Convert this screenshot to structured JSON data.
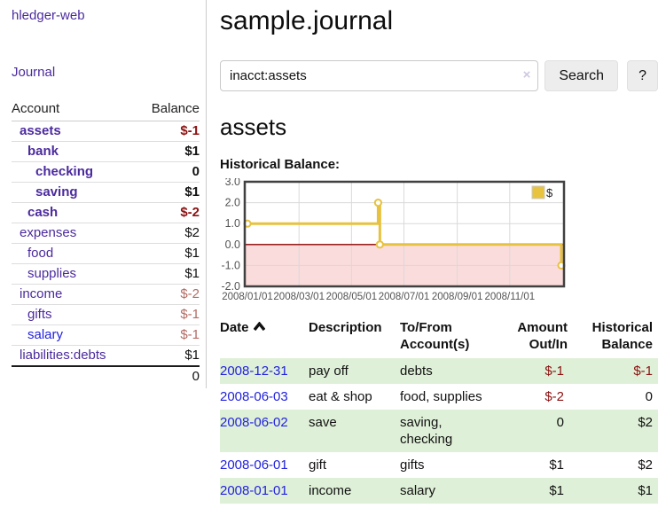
{
  "app": {
    "brand": "hledger-web"
  },
  "sidebar": {
    "nav_journal": "Journal",
    "accounts_table": {
      "header_account": "Account",
      "header_balance": "Balance",
      "rows": [
        {
          "name": "assets",
          "indent": 1,
          "bold": true,
          "name_style": "purple",
          "balance": "$-1",
          "balance_style": "neg-strong"
        },
        {
          "name": "bank",
          "indent": 2,
          "bold": true,
          "name_style": "purple",
          "balance": "$1",
          "balance_style": "pos"
        },
        {
          "name": "checking",
          "indent": 3,
          "bold": true,
          "name_style": "purple",
          "balance": "0",
          "balance_style": "pos"
        },
        {
          "name": "saving",
          "indent": 3,
          "bold": true,
          "name_style": "purple",
          "balance": "$1",
          "balance_style": "pos"
        },
        {
          "name": "cash",
          "indent": 2,
          "bold": true,
          "name_style": "purple",
          "balance": "$-2",
          "balance_style": "neg-strong"
        },
        {
          "name": "expenses",
          "indent": 1,
          "bold": false,
          "name_style": "purple",
          "balance": "$2",
          "balance_style": "pos"
        },
        {
          "name": "food",
          "indent": 2,
          "bold": false,
          "name_style": "purple",
          "balance": "$1",
          "balance_style": "pos"
        },
        {
          "name": "supplies",
          "indent": 2,
          "bold": false,
          "name_style": "purple",
          "balance": "$1",
          "balance_style": "pos"
        },
        {
          "name": "income",
          "indent": 1,
          "bold": false,
          "name_style": "purple",
          "balance": "$-2",
          "balance_style": "neg-soft"
        },
        {
          "name": "gifts",
          "indent": 2,
          "bold": false,
          "name_style": "purple",
          "balance": "$-1",
          "balance_style": "neg-soft"
        },
        {
          "name": "salary",
          "indent": 2,
          "bold": false,
          "name_style": "blue",
          "balance": "$-1",
          "balance_style": "neg-soft"
        },
        {
          "name": "liabilities:debts",
          "indent": 1,
          "bold": false,
          "name_style": "purple",
          "balance": "$1",
          "balance_style": "pos"
        }
      ],
      "total": "0"
    }
  },
  "main": {
    "title": "sample.journal",
    "search": {
      "value": "inacct:assets",
      "clear_icon": "×",
      "button_label": "Search",
      "help_label": "?"
    },
    "account_heading": "assets",
    "chart_label": "Historical Balance:"
  },
  "chart_data": {
    "type": "line",
    "step": true,
    "title": "Historical Balance",
    "series": [
      {
        "name": "$",
        "x": [
          "2008-01-01",
          "2008-06-01",
          "2008-06-02",
          "2008-06-03",
          "2008-12-31"
        ],
        "values": [
          1,
          2,
          2,
          0,
          -1
        ]
      }
    ],
    "xlim": [
      "2008-01-01",
      "2008-12-31"
    ],
    "ylim": [
      -2,
      3
    ],
    "x_ticks": [
      "2008-01-01",
      "2008-03-01",
      "2008-05-01",
      "2008-07-01",
      "2008-09-01",
      "2008-11-01"
    ],
    "x_tick_labels": [
      "2008/01/01",
      "2008/03/01",
      "2008/05/01",
      "2008/07/01",
      "2008/09/01",
      "2008/11/01"
    ],
    "y_ticks": [
      3,
      2,
      1,
      0,
      -1,
      -2
    ],
    "y_tick_labels": [
      "3.0",
      "2.0",
      "1.0",
      "0.0",
      "-1.0",
      "-2.0"
    ],
    "grid": true,
    "legend": {
      "position": "top-right",
      "label": "$"
    },
    "colors": {
      "line": "#e7c23f",
      "marker_fill": "#ffffff",
      "negative_region": "#fbdcdc",
      "zero_line": "#8b0000",
      "grid": "#d9d9d9",
      "border": "#404040",
      "tick_text": "#545454",
      "legend_swatch": "#e8c33f"
    }
  },
  "transactions": {
    "headers": {
      "date": "Date",
      "description": "Description",
      "accounts": "To/From\nAccount(s)",
      "amount": "Amount\nOut/In",
      "balance": "Historical\nBalance"
    },
    "rows": [
      {
        "date": "2008-12-31",
        "description": "pay off",
        "accounts": "debts",
        "amount": "$-1",
        "amount_neg": true,
        "balance": "$-1",
        "balance_neg": true,
        "stripe": true
      },
      {
        "date": "2008-06-03",
        "description": "eat & shop",
        "accounts": "food, supplies",
        "amount": "$-2",
        "amount_neg": true,
        "balance": "0",
        "balance_neg": false,
        "stripe": false
      },
      {
        "date": "2008-06-02",
        "description": "save",
        "accounts": "saving, checking",
        "amount": "0",
        "amount_neg": false,
        "balance": "$2",
        "balance_neg": false,
        "stripe": true
      },
      {
        "date": "2008-06-01",
        "description": "gift",
        "accounts": "gifts",
        "amount": "$1",
        "amount_neg": false,
        "balance": "$2",
        "balance_neg": false,
        "stripe": false
      },
      {
        "date": "2008-01-01",
        "description": "income",
        "accounts": "salary",
        "amount": "$1",
        "amount_neg": false,
        "balance": "$1",
        "balance_neg": false,
        "stripe": true
      }
    ]
  }
}
